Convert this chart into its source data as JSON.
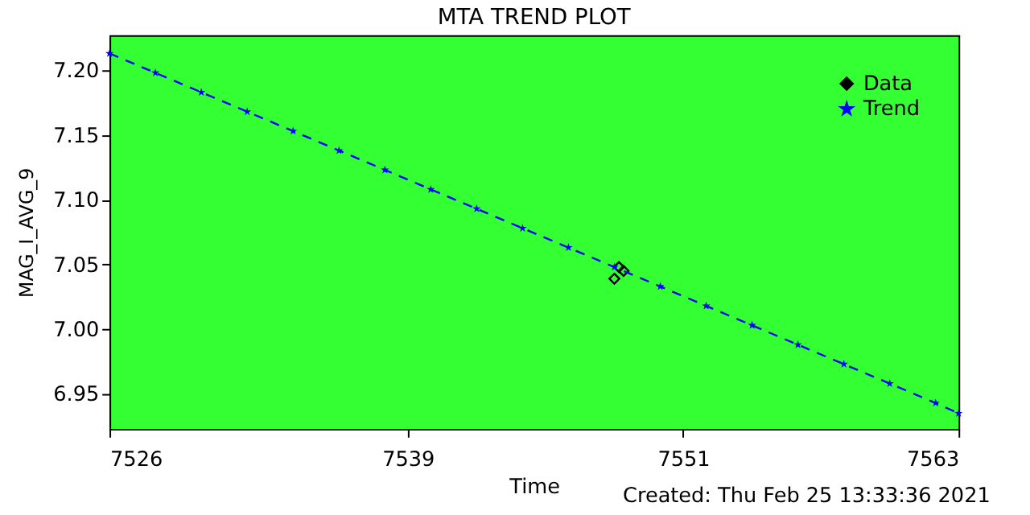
{
  "chart_data": {
    "type": "line",
    "title": "MTA TREND PLOT",
    "xlabel": "Time",
    "ylabel": "MAG_I_AVG_9",
    "xlim": [
      7526,
      7563
    ],
    "xticks": [
      7526,
      7539,
      7551,
      7563
    ],
    "ylim": [
      6.923,
      7.227
    ],
    "yticks": [
      6.95,
      {
        "value": 7.0,
        "label": "7.00"
      },
      7.05,
      {
        "value": 7.1,
        "label": "7.10"
      },
      7.15,
      {
        "value": 7.2,
        "label": "7.20"
      }
    ],
    "grid": false,
    "legend": "top right",
    "annotations": [
      "Created: Thu Feb 25 13:33:36 2021"
    ],
    "series": [
      {
        "name": "Data",
        "type": "scatter",
        "marker": "diamond",
        "color": "#000000",
        "x": [
          7548.0,
          7548.2,
          7548.4
        ],
        "values": [
          7.039,
          7.048,
          7.045
        ]
      },
      {
        "name": "Trend",
        "marker": "star",
        "line_style": "dashed",
        "color": "#0000ff",
        "x": [
          7526,
          7528,
          7530,
          7532,
          7534,
          7536,
          7538,
          7540,
          7542,
          7544,
          7546,
          7548,
          7550,
          7552,
          7554,
          7556,
          7558,
          7560,
          7562,
          7563
        ],
        "values": [
          7.213,
          7.198,
          7.183,
          7.168,
          7.153,
          7.138,
          7.123,
          7.108,
          7.093,
          7.078,
          7.063,
          7.048,
          7.033,
          7.018,
          7.003,
          6.988,
          6.973,
          6.958,
          6.943,
          6.935
        ]
      }
    ]
  }
}
